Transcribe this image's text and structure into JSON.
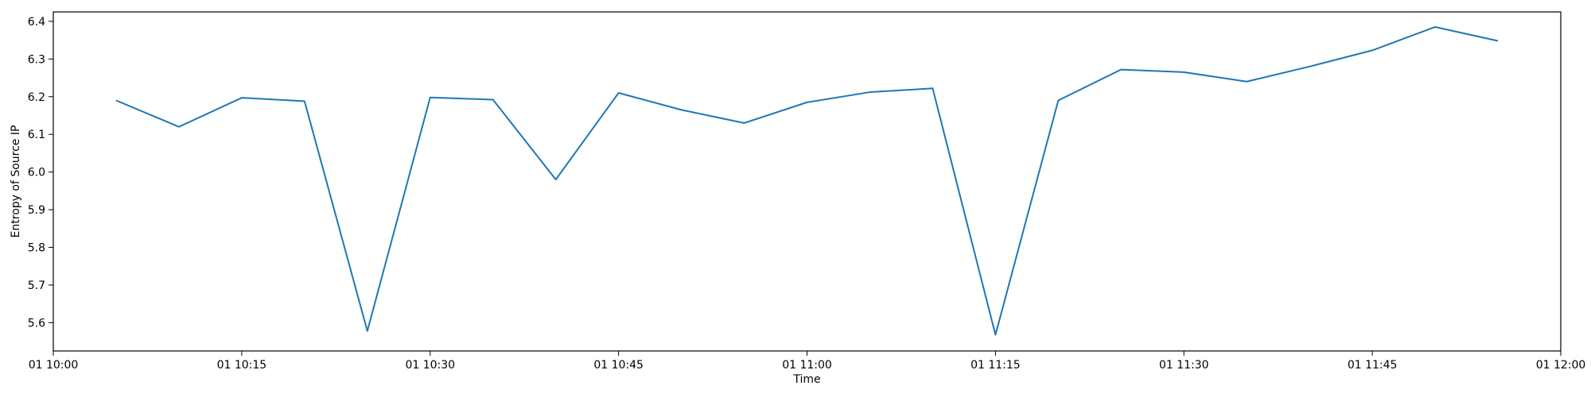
{
  "chart_data": {
    "type": "line",
    "xlabel": "Time",
    "ylabel": "Entropy of Source IP",
    "xlim": [
      "10:00",
      "12:00"
    ],
    "ylim": [
      5.525,
      6.425
    ],
    "grid": false,
    "line_color": "#1f77b4",
    "x_ticks": [
      {
        "t": "10:00",
        "label": "01 10:00"
      },
      {
        "t": "10:15",
        "label": "01 10:15"
      },
      {
        "t": "10:30",
        "label": "01 10:30"
      },
      {
        "t": "10:45",
        "label": "01 10:45"
      },
      {
        "t": "11:00",
        "label": "01 11:00"
      },
      {
        "t": "11:15",
        "label": "01 11:15"
      },
      {
        "t": "11:30",
        "label": "01 11:30"
      },
      {
        "t": "11:45",
        "label": "01 11:45"
      },
      {
        "t": "12:00",
        "label": "01 12:00"
      }
    ],
    "y_ticks": [
      5.6,
      5.7,
      5.8,
      5.9,
      6.0,
      6.1,
      6.2,
      6.3,
      6.4
    ],
    "y_tick_labels": [
      "5.6",
      "5.7",
      "5.8",
      "5.9",
      "6.0",
      "6.1",
      "6.2",
      "6.3",
      "6.4"
    ],
    "series": [
      {
        "x": [
          "10:05",
          "10:10",
          "10:15",
          "10:20",
          "10:25",
          "10:30",
          "10:35",
          "10:40",
          "10:45",
          "10:50",
          "10:55",
          "11:00",
          "11:05",
          "11:10",
          "11:15",
          "11:20",
          "11:25",
          "11:30",
          "11:35",
          "11:40",
          "11:45",
          "11:50",
          "11:55"
        ],
        "values": [
          6.19,
          6.12,
          6.197,
          6.188,
          5.578,
          6.198,
          6.192,
          5.98,
          6.21,
          6.165,
          6.13,
          6.185,
          6.212,
          6.222,
          5.568,
          6.19,
          6.272,
          6.265,
          6.24,
          6.28,
          6.323,
          6.385,
          6.348
        ]
      }
    ]
  }
}
